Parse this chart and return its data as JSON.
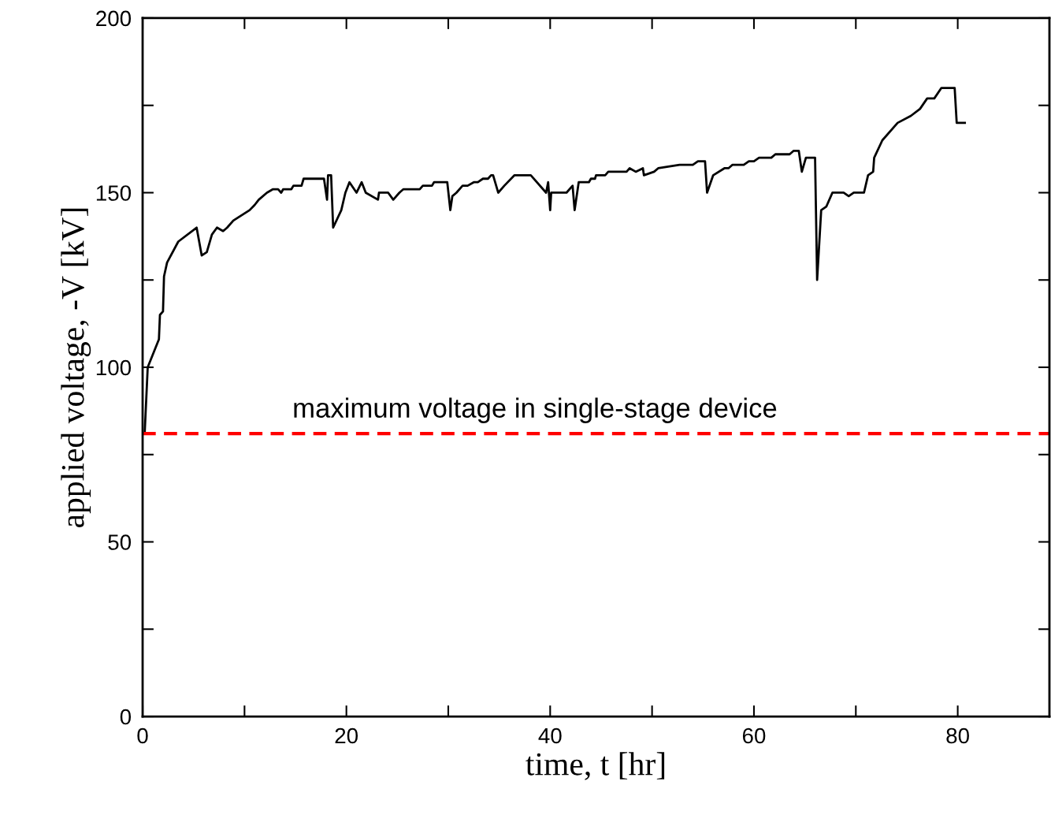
{
  "chart_data": {
    "type": "line",
    "xlabel": "time, t [hr]",
    "ylabel": "applied voltage, -V [kV]",
    "x": [
      0.2,
      0.5,
      1.6,
      1.7,
      2.0,
      2.1,
      2.4,
      3.5,
      5.3,
      5.8,
      6.3,
      6.8,
      7.3,
      7.9,
      8.3,
      8.9,
      10.5,
      11.0,
      11.4,
      12.2,
      12.8,
      13.3,
      13.6,
      13.8,
      14.6,
      14.8,
      15.6,
      15.8,
      17.8,
      18.1,
      18.2,
      18.5,
      18.7,
      19.5,
      19.9,
      20.3,
      21.0,
      21.5,
      21.9,
      23.1,
      23.2,
      24.1,
      24.6,
      25.2,
      25.6,
      27.2,
      27.5,
      28.4,
      28.6,
      29.9,
      30.2,
      30.4,
      30.8,
      31.4,
      31.9,
      32.5,
      32.9,
      33.4,
      33.9,
      34.2,
      34.4,
      34.9,
      35.5,
      36.5,
      38.1,
      39.6,
      39.8,
      40.0,
      40.1,
      41.6,
      42.2,
      42.4,
      42.8,
      43.8,
      44.0,
      44.4,
      44.5,
      45.4,
      45.7,
      47.5,
      47.8,
      48.4,
      49.1,
      49.2,
      50.2,
      50.6,
      52.7,
      54.0,
      54.5,
      55.2,
      55.4,
      56.0,
      57.1,
      57.5,
      57.9,
      59.0,
      59.5,
      60.0,
      60.5,
      61.7,
      62.1,
      63.5,
      63.9,
      64.4,
      64.7,
      65.1,
      66.0,
      66.2,
      66.6,
      67.1,
      67.7,
      68.8,
      69.3,
      69.8,
      70.8,
      71.2,
      71.7,
      71.8,
      72.6,
      74.1,
      75.4,
      76.3,
      77.0,
      77.7,
      78.4,
      79.7,
      79.9,
      80.7
    ],
    "series": [
      {
        "color": "#000000",
        "values": [
          81,
          100,
          108,
          115,
          116,
          126,
          130,
          136,
          140,
          132,
          133,
          138,
          140,
          139,
          140,
          142,
          145,
          146.5,
          148,
          150,
          151,
          151,
          150,
          151,
          151,
          152,
          152,
          154,
          154,
          148,
          155,
          155,
          140,
          145,
          150,
          153,
          150,
          153,
          150,
          148,
          150,
          150,
          148,
          150,
          151,
          151,
          152,
          152,
          153,
          153,
          145,
          149,
          150,
          152,
          152,
          153,
          153,
          154,
          154,
          155,
          155,
          150,
          152,
          155,
          155,
          150,
          153,
          145,
          150,
          150,
          152,
          145,
          153,
          153,
          154,
          154,
          155,
          155,
          156,
          156,
          157,
          156,
          157,
          155,
          156,
          157,
          158,
          158,
          159,
          159,
          150,
          155,
          157,
          157,
          158,
          158,
          159,
          159,
          160,
          160,
          161,
          161,
          162,
          162,
          156,
          160,
          160,
          125,
          145,
          146,
          150,
          150,
          149,
          150,
          150,
          155,
          156,
          160,
          165,
          170,
          172,
          174,
          177,
          177,
          180,
          180,
          170,
          170
        ]
      }
    ],
    "xlim": [
      0,
      89
    ],
    "ylim": [
      0,
      200
    ],
    "xticks": [
      0,
      {
        "value": 10,
        "label": null
      },
      20,
      {
        "value": 30,
        "label": null
      },
      40,
      {
        "value": 50,
        "label": null
      },
      60,
      {
        "value": 70,
        "label": null
      },
      80
    ],
    "yticks": [
      0,
      {
        "value": 25,
        "label": null
      },
      50,
      {
        "value": 75,
        "label": null
      },
      100,
      {
        "value": 125,
        "label": null
      },
      150,
      {
        "value": 175,
        "label": null
      },
      200
    ],
    "ref_lines": [
      {
        "axis": "y",
        "value": 81,
        "label": "maximum voltage in single-stage device",
        "color": "#ff0000",
        "line_style": "dashed"
      }
    ],
    "grid": false,
    "legend": false,
    "marker": "none",
    "line_style": "solid"
  }
}
